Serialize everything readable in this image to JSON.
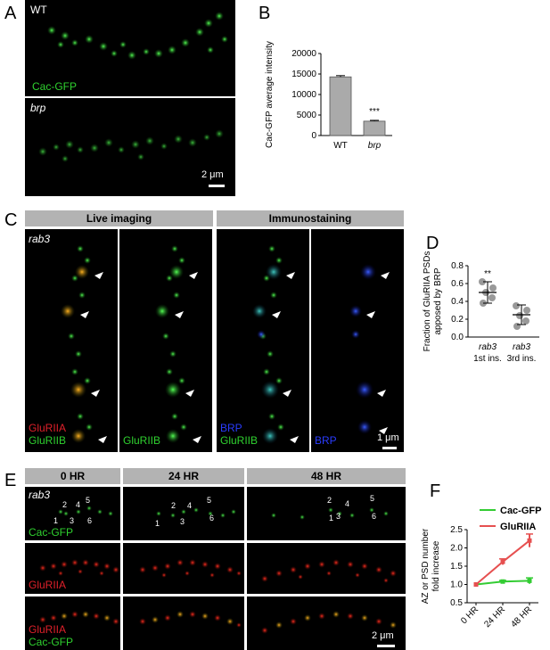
{
  "panels": {
    "A": {
      "letter": "A",
      "top_label": "WT",
      "top_channel": "Cac-GFP",
      "bottom_label": "brp",
      "scale": "2 μm"
    },
    "B": {
      "letter": "B",
      "significance": "***"
    },
    "C": {
      "letter": "C",
      "header_live": "Live imaging",
      "header_immuno": "Immunostaining",
      "genotype": "rab3",
      "col1_label1": "GluRIIA",
      "col1_label2": "GluRIIB",
      "col2_label": "GluRIIB",
      "col3_label1": "BRP",
      "col3_label2": "GluRIIB",
      "col4_label": "BRP",
      "scale": "1 μm"
    },
    "D": {
      "letter": "D",
      "significance": "**"
    },
    "E": {
      "letter": "E",
      "headers": [
        "0 HR",
        "24 HR",
        "48 HR"
      ],
      "genotype": "rab3",
      "row1_channel": "Cac-GFP",
      "row2_channel": "GluRIIA",
      "row3_channel1": "GluRIIA",
      "row3_channel2": "Cac-GFP",
      "numbers": [
        "1",
        "2",
        "3",
        "4",
        "5",
        "6"
      ],
      "scale": "2 μm"
    },
    "F": {
      "letter": "F"
    }
  },
  "chart_data": [
    {
      "id": "B",
      "type": "bar",
      "categories": [
        "WT",
        "brp"
      ],
      "values": [
        14300,
        3500
      ],
      "errors": [
        300,
        200
      ],
      "ylabel": "Cac-GFP average intensity",
      "ylim": [
        0,
        20000
      ],
      "yticks": [
        "0",
        "5000",
        "10000",
        "15000",
        "20000"
      ],
      "bar_color": "#aaaaaa"
    },
    {
      "id": "D",
      "type": "scatter",
      "categories": [
        "rab3 1st ins.",
        "rab3 3rd ins."
      ],
      "category_line1": [
        "rab3",
        "rab3"
      ],
      "category_line2": [
        "1st ins.",
        "3rd ins."
      ],
      "ylabel_line1": "Fraction of GluRIIA PSDs",
      "ylabel_line2": "apposed by BRP",
      "ylim": [
        0,
        0.8
      ],
      "yticks": [
        "0.0",
        "0.2",
        "0.4",
        "0.6",
        "0.8"
      ],
      "points": [
        [
          0.62,
          0.55,
          0.5,
          0.44,
          0.38
        ],
        [
          0.35,
          0.3,
          0.24,
          0.18,
          0.12
        ]
      ],
      "means": [
        0.5,
        0.25
      ],
      "sd": [
        0.12,
        0.11
      ],
      "point_color": "#999999"
    },
    {
      "id": "F",
      "type": "line",
      "categories": [
        "0 HR",
        "24 HR",
        "48 HR"
      ],
      "ylabel_line1": "AZ or PSD number",
      "ylabel_line2": "fold increase",
      "ylim": [
        0.5,
        2.5
      ],
      "yticks": [
        "0.5",
        "1.0",
        "1.5",
        "2.0",
        "2.5"
      ],
      "series": [
        {
          "name": "Cac-GFP",
          "values": [
            1.0,
            1.08,
            1.1
          ],
          "errors": [
            0,
            0.03,
            0.08
          ],
          "color": "#33cc33"
        },
        {
          "name": "GluRIIA",
          "values": [
            1.0,
            1.62,
            2.2
          ],
          "errors": [
            0,
            0.08,
            0.18
          ],
          "color": "#e65050"
        }
      ],
      "legend": "top-right"
    }
  ]
}
